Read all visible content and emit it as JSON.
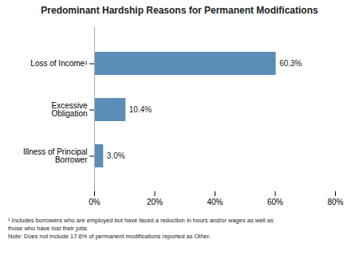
{
  "chart_data": {
    "type": "bar",
    "title": "Predominant Hardship Reasons for Permanent Modifications",
    "orientation": "horizontal",
    "categories": [
      "Illness of Principal\nBorrower",
      "Excessive\nObligation",
      "Loss of Income¹"
    ],
    "values": [
      3.0,
      10.4,
      60.3
    ],
    "value_labels": [
      "3.0%",
      "10.4%",
      "60.3%"
    ],
    "data_labels": true,
    "color": "#5B8DB8",
    "xlim": [
      0,
      80
    ],
    "xticks": [
      {
        "value": 0,
        "label": "0%"
      },
      {
        "value": 20,
        "label": "20%"
      },
      {
        "value": 40,
        "label": "40%"
      },
      {
        "value": 60,
        "label": "60%"
      },
      {
        "value": 80,
        "label": "80%"
      }
    ],
    "grid": false,
    "annotations": [
      "¹ Includes borrowers who are employed but have faced a reduction in hours and/or wages as well as",
      "those who have lost their jobs.",
      "Note: Does not include 17.6% of permanent modifications reported as Other."
    ]
  }
}
